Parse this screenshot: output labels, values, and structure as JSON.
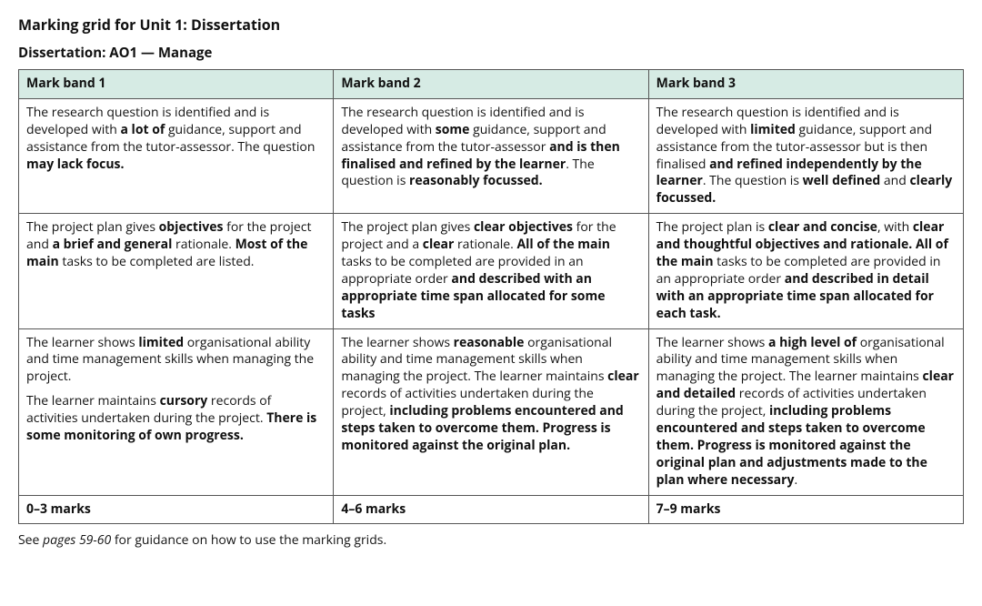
{
  "title": "Marking grid for Unit 1: Dissertation",
  "subtitle": "Dissertation: AO1 — Manage",
  "headers": [
    "Mark band 1",
    "Mark band 2",
    "Mark band 3"
  ],
  "rows": [
    [
      "The research question is identified and is developed with <strong>a lot of</strong> guidance, support and assistance from the tutor-assessor. The question <strong>may lack focus.</strong>",
      "The research question is identified and is developed with <strong>some</strong> guidance, support and assistance from the tutor-assessor <strong>and is then finalised and refined by the learner</strong>. The question is <strong>reasonably focussed.</strong>",
      "The research question is identified and is developed with <strong>limited</strong> guidance, support and assistance from the tutor-assessor but is then finalised <strong>and refined independently by the learner</strong>. The question is <strong>well defined</strong> and <strong>clearly focussed.</strong>"
    ],
    [
      "The project plan gives <strong>objectives</strong> for the project and <strong>a brief and general</strong> rationale. <strong>Most of the main</strong> tasks to be completed are listed.",
      "The project plan gives <strong>clear objectives</strong> for the project and a <strong>clear</strong> rationale. <strong>All of the main</strong> tasks to be completed are provided in an appropriate order <strong>and described with an appropriate time span allocated for some tasks</strong>",
      "The project plan is <strong>clear and concise</strong>, with <strong>clear and thoughtful objectives and rationale. All of the main</strong> tasks to be completed are provided in an appropriate order <strong>and described in detail with an appropriate time span allocated for each task.</strong>"
    ],
    [
      "<p>The learner shows <strong>limited</strong> organisational ability and time management skills when managing the project.</p><p>The learner maintains <strong>cursory</strong> records of activities undertaken during the project. <strong>There is some monitoring of own progress.</strong></p>",
      "The learner shows <strong>reasonable</strong> organisational ability and time management skills when managing the project. The learner maintains <strong>clear</strong> records of activities undertaken during the project, <strong>including problems encountered and steps taken to overcome them. Progress is monitored against the original plan.</strong>",
      "The learner shows <strong>a high level of</strong> organisational ability and time management skills when managing the project. The learner maintains <strong>clear and detailed</strong> records of activities undertaken during the project, <strong>including problems encountered and steps taken to overcome them. Progress is monitored against the original plan and adjustments made to the plan where necessary</strong>."
    ],
    [
      "<strong>0–3 marks</strong>",
      "<strong>4–6 marks</strong>",
      "<strong>7–9 marks</strong>"
    ]
  ],
  "footnote_prefix": "See ",
  "footnote_em": "pages 59-60",
  "footnote_suffix": " for guidance on how to use the marking grids.",
  "colors": {
    "header_bg": "#d6ebe4",
    "border": "#555555",
    "text": "#111111",
    "background": "#ffffff"
  }
}
